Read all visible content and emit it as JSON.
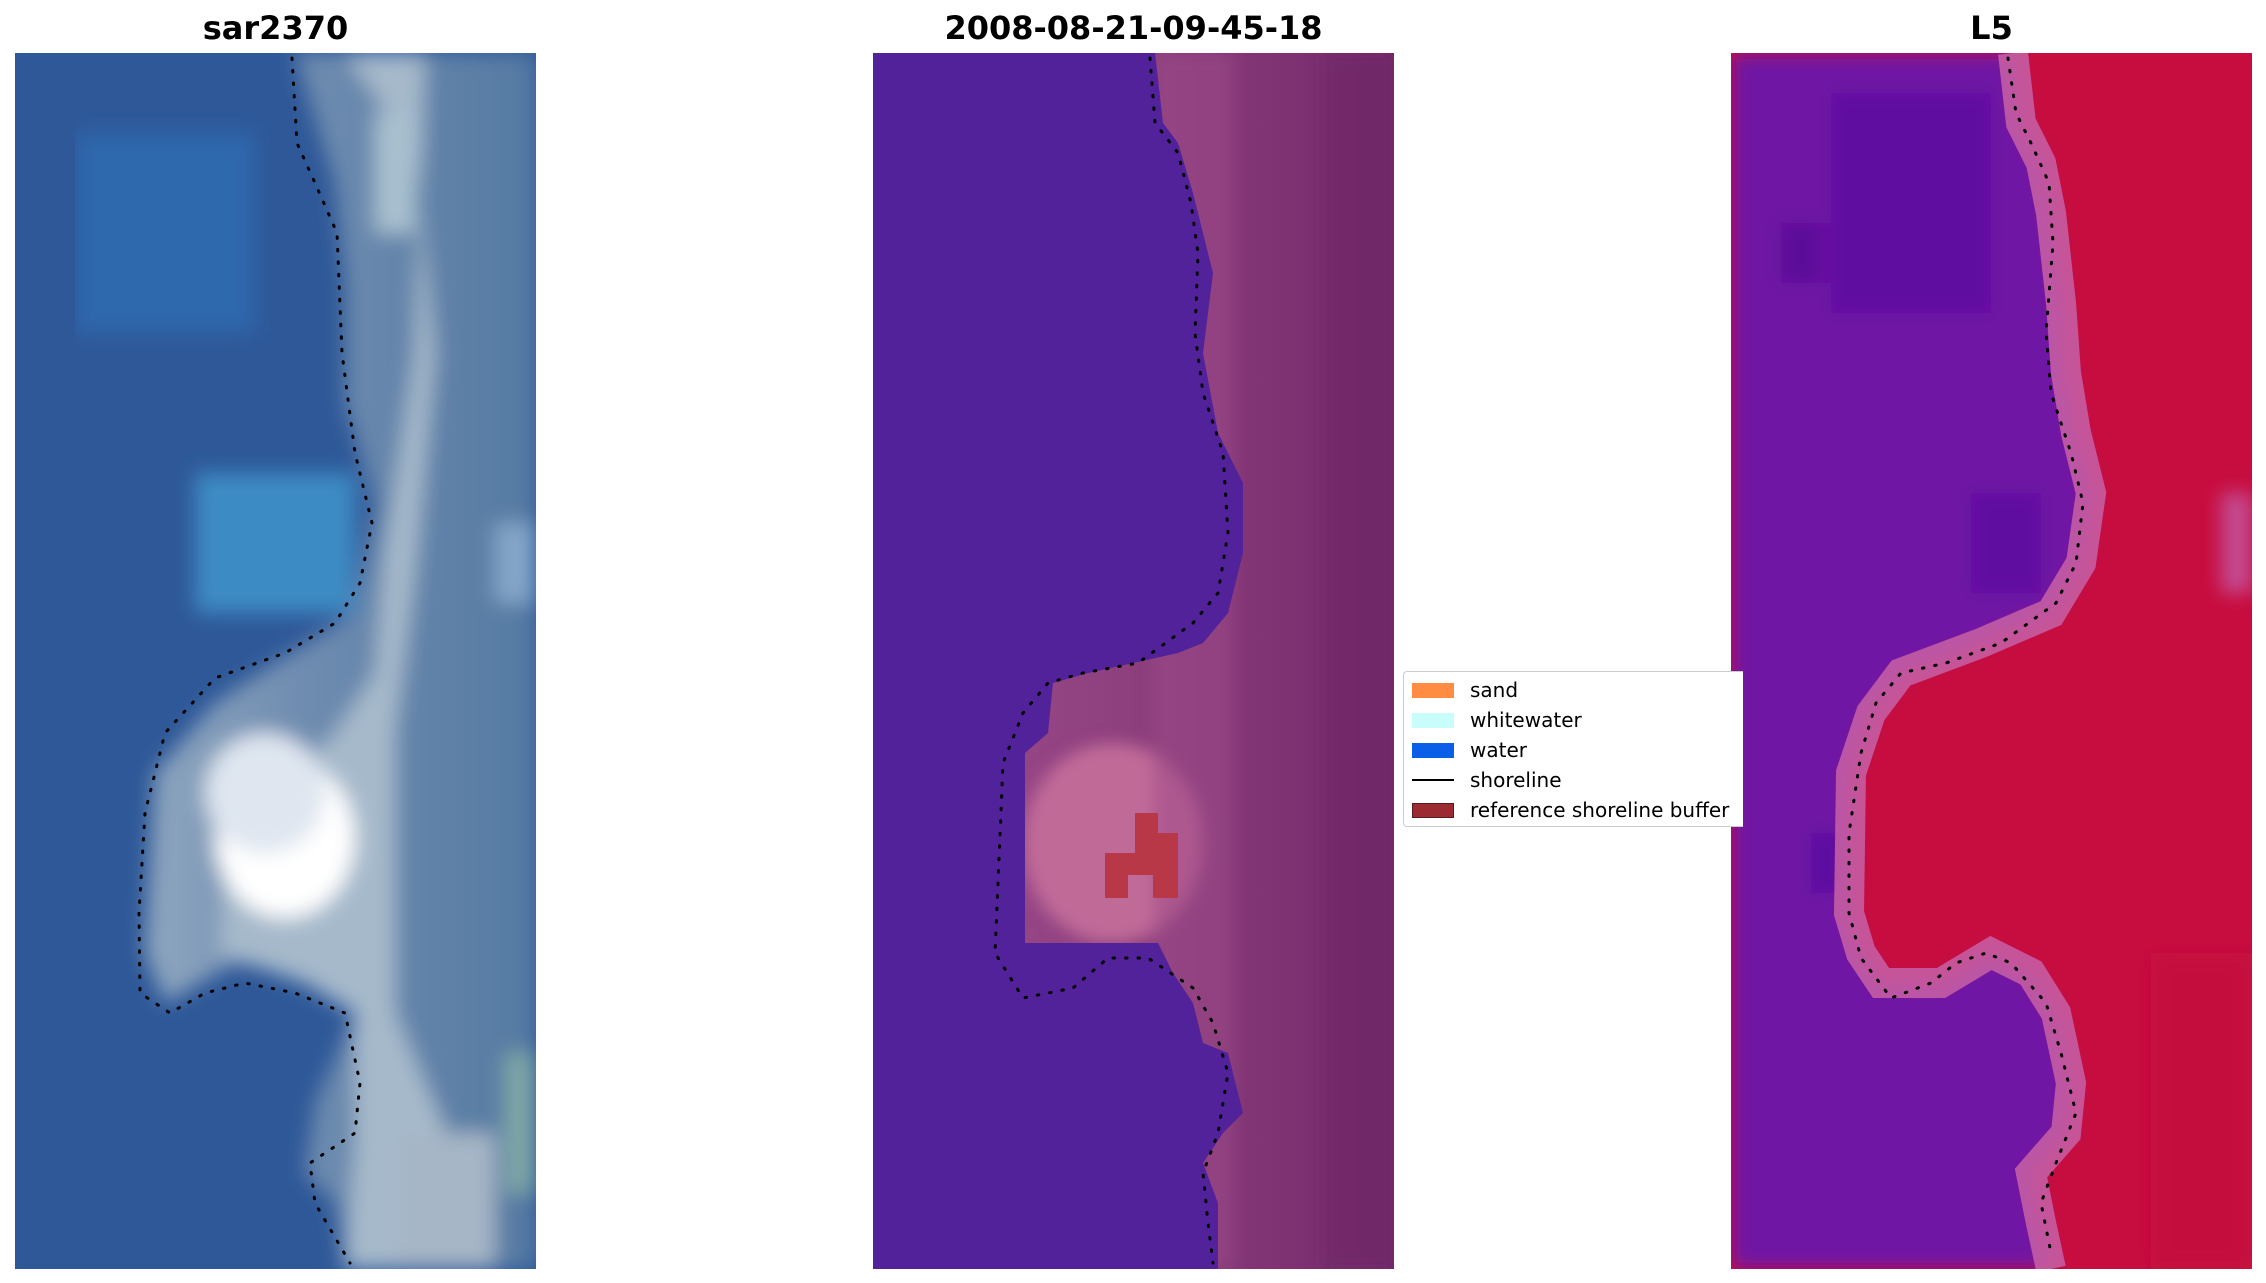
{
  "panels": [
    {
      "title": "sar2370"
    },
    {
      "title": "2008-08-21-09-45-18"
    },
    {
      "title": "L5"
    }
  ],
  "legend": {
    "items": [
      {
        "label": "sand",
        "color": "#ff8c42",
        "kind": "patch"
      },
      {
        "label": "whitewater",
        "color": "#c8fdfb",
        "kind": "patch"
      },
      {
        "label": "water",
        "color": "#0a5ee8",
        "kind": "patch"
      },
      {
        "label": "shoreline",
        "color": "#000000",
        "kind": "line"
      },
      {
        "label": "reference shoreline buffer",
        "color": "#9b2a33",
        "kind": "patch"
      }
    ]
  },
  "colors": {
    "water_rgb": "#2c5a98",
    "water_bright_rgb": "#3d8cc4",
    "land_rgb": "#5b7ba4",
    "surf_rgb": "#a9bcd0",
    "class_water": "#52209a",
    "class_land": "#7a2f6c",
    "class_land_light": "#a45190",
    "class_buffer": "#b73648",
    "ndwi_water": "#6d14a8",
    "ndwi_land": "#c80a3c",
    "ndwi_edge": "#c45ba0"
  }
}
